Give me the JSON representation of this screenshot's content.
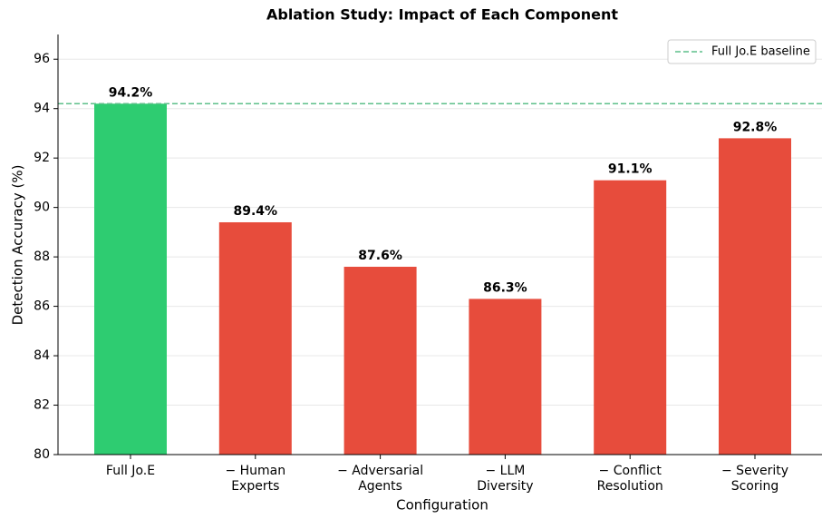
{
  "chart_data": {
    "type": "bar",
    "title": "Ablation Study: Impact of Each Component",
    "x_label": "Configuration",
    "y_label": "Detection Accuracy (%)",
    "categories": [
      [
        "Full Jo.E"
      ],
      [
        "− Human",
        "Experts"
      ],
      [
        "− Adversarial",
        "Agents"
      ],
      [
        "− LLM",
        "Diversity"
      ],
      [
        "− Conflict",
        "Resolution"
      ],
      [
        "− Severity",
        "Scoring"
      ]
    ],
    "values": [
      94.2,
      89.4,
      87.6,
      86.3,
      91.1,
      92.8
    ],
    "value_labels": [
      "94.2%",
      "89.4%",
      "87.6%",
      "86.3%",
      "91.1%",
      "92.8%"
    ],
    "colors": [
      "#2ecc71",
      "#e74c3c",
      "#e74c3c",
      "#e74c3c",
      "#e74c3c",
      "#e74c3c"
    ],
    "baseline": {
      "name": "Full Jo.E baseline",
      "value": 94.2,
      "color": "#5dbf8a"
    },
    "ylim": [
      80,
      97
    ],
    "yticks": [
      80,
      82,
      84,
      86,
      88,
      90,
      92,
      94,
      96
    ],
    "grid": true,
    "legend": "upper right"
  }
}
